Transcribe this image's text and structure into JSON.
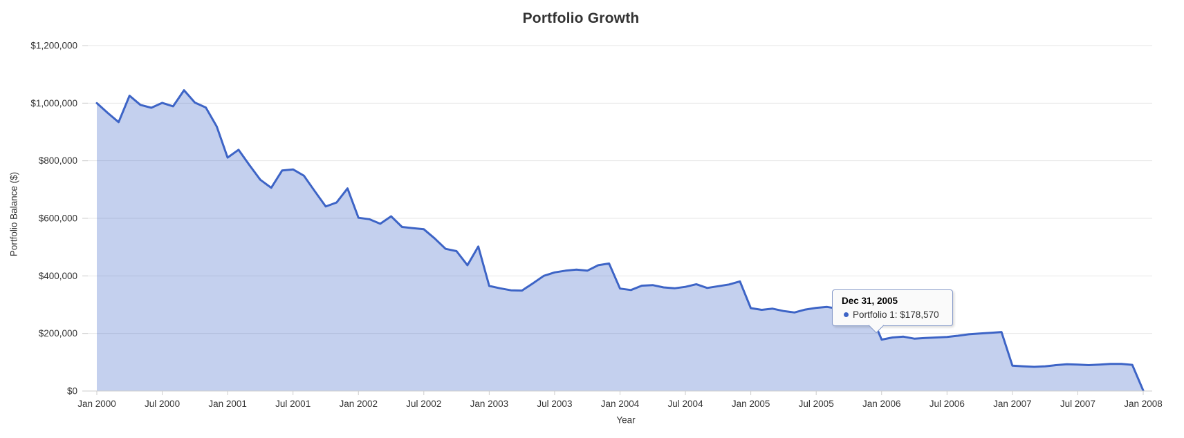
{
  "title": "Portfolio Growth",
  "axes": {
    "x_label": "Year",
    "y_label": "Portfolio Balance ($)",
    "x_ticks": [
      "Jan 2000",
      "Jul 2000",
      "Jan 2001",
      "Jul 2001",
      "Jan 2002",
      "Jul 2002",
      "Jan 2003",
      "Jul 2003",
      "Jan 2004",
      "Jul 2004",
      "Jan 2005",
      "Jul 2005",
      "Jan 2006",
      "Jul 2006",
      "Jan 2007",
      "Jul 2007",
      "Jan 2008"
    ],
    "y_ticks": [
      {
        "label": "$0",
        "value": 0
      },
      {
        "label": "$200,000",
        "value": 200000
      },
      {
        "label": "$400,000",
        "value": 400000
      },
      {
        "label": "$600,000",
        "value": 600000
      },
      {
        "label": "$800,000",
        "value": 800000
      },
      {
        "label": "$1,000,000",
        "value": 1000000
      },
      {
        "label": "$1,200,000",
        "value": 1200000
      }
    ]
  },
  "tooltip": {
    "date": "Dec 31, 2005",
    "series_line": "Portfolio 1: $178,570"
  },
  "colors": {
    "line": "#3D64C6",
    "fill": "rgba(61,100,198,0.3)",
    "grid": "#E6E6E6",
    "axis_line": "#CCCCCC",
    "text": "#333333",
    "tooltip_bg": "#FAFAFA",
    "tooltip_border": "#8498C8",
    "bullet": "#3D64C6"
  },
  "chart_data": {
    "type": "area",
    "title": "Portfolio Growth",
    "xlabel": "Year",
    "ylabel": "Portfolio Balance ($)",
    "ylim": [
      0,
      1200000
    ],
    "grid": "horizontal",
    "legend": "none",
    "highlighted_point": {
      "date": "Dec 31, 2005",
      "series": "Portfolio 1",
      "value": 178570
    },
    "x": [
      "1999-12",
      "2000-01",
      "2000-02",
      "2000-03",
      "2000-04",
      "2000-05",
      "2000-06",
      "2000-07",
      "2000-08",
      "2000-09",
      "2000-10",
      "2000-11",
      "2000-12",
      "2001-01",
      "2001-02",
      "2001-03",
      "2001-04",
      "2001-05",
      "2001-06",
      "2001-07",
      "2001-08",
      "2001-09",
      "2001-10",
      "2001-11",
      "2001-12",
      "2002-01",
      "2002-02",
      "2002-03",
      "2002-04",
      "2002-05",
      "2002-06",
      "2002-07",
      "2002-08",
      "2002-09",
      "2002-10",
      "2002-11",
      "2002-12",
      "2003-01",
      "2003-02",
      "2003-03",
      "2003-04",
      "2003-05",
      "2003-06",
      "2003-07",
      "2003-08",
      "2003-09",
      "2003-10",
      "2003-11",
      "2003-12",
      "2004-01",
      "2004-02",
      "2004-03",
      "2004-04",
      "2004-05",
      "2004-06",
      "2004-07",
      "2004-08",
      "2004-09",
      "2004-10",
      "2004-11",
      "2004-12",
      "2005-01",
      "2005-02",
      "2005-03",
      "2005-04",
      "2005-05",
      "2005-06",
      "2005-07",
      "2005-08",
      "2005-09",
      "2005-10",
      "2005-11",
      "2005-12",
      "2006-01",
      "2006-02",
      "2006-03",
      "2006-04",
      "2006-05",
      "2006-06",
      "2006-07",
      "2006-08",
      "2006-09",
      "2006-10",
      "2006-11",
      "2006-12",
      "2007-01",
      "2007-02",
      "2007-03",
      "2007-04",
      "2007-05",
      "2007-06",
      "2007-07",
      "2007-08",
      "2007-09",
      "2007-10",
      "2007-11",
      "2007-12"
    ],
    "series": [
      {
        "name": "Portfolio 1",
        "values": [
          1000000,
          966000,
          934000,
          1026000,
          994000,
          984000,
          1001000,
          989000,
          1045000,
          1002000,
          985000,
          919000,
          811000,
          838000,
          785000,
          734000,
          706000,
          766000,
          770000,
          748000,
          694000,
          641000,
          655000,
          704000,
          602000,
          597000,
          581000,
          607000,
          570000,
          566000,
          562000,
          530000,
          494000,
          486000,
          437000,
          502000,
          365000,
          357000,
          350000,
          349000,
          374000,
          400000,
          412000,
          418000,
          422000,
          418000,
          437000,
          443000,
          356000,
          351000,
          366000,
          368000,
          360000,
          357000,
          362000,
          371000,
          358000,
          364000,
          370000,
          381000,
          288000,
          282000,
          286000,
          278000,
          273000,
          283000,
          289000,
          292000,
          286000,
          280000,
          274000,
          268000,
          178570,
          186000,
          189000,
          182000,
          184000,
          186000,
          188000,
          192000,
          197000,
          200000,
          202000,
          205000,
          88000,
          86000,
          84000,
          86000,
          90000,
          93000,
          92000,
          90000,
          92000,
          94000,
          94000,
          91000,
          2000
        ]
      }
    ]
  }
}
